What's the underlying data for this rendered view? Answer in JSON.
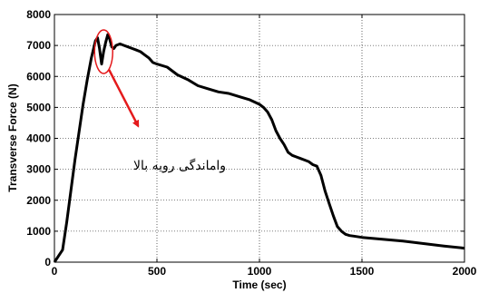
{
  "chart_data": {
    "type": "line",
    "title": "",
    "xlabel": "Time (sec)",
    "ylabel": "Transverse Force (N)",
    "xlim": [
      0,
      2000
    ],
    "ylim": [
      0,
      8000
    ],
    "x_ticks": [
      0,
      500,
      1000,
      1500,
      2000
    ],
    "y_ticks": [
      0,
      1000,
      2000,
      3000,
      4000,
      5000,
      6000,
      7000,
      8000
    ],
    "x_tick_labels": [
      "0",
      "500",
      "1000",
      "1500",
      "2000"
    ],
    "y_tick_labels": [
      "0",
      "1000",
      "2000",
      "3000",
      "4000",
      "5000",
      "6000",
      "7000",
      "8000"
    ],
    "grid": true,
    "series": [
      {
        "color": "#000000",
        "x": [
          0,
          20,
          40,
          60,
          80,
          100,
          120,
          140,
          160,
          180,
          200,
          210,
          220,
          230,
          240,
          250,
          260,
          270,
          280,
          290,
          300,
          320,
          340,
          360,
          380,
          400,
          420,
          440,
          460,
          480,
          500,
          550,
          600,
          650,
          700,
          750,
          800,
          850,
          900,
          950,
          1000,
          1020,
          1040,
          1060,
          1080,
          1100,
          1120,
          1140,
          1160,
          1180,
          1200,
          1220,
          1240,
          1260,
          1280,
          1300,
          1320,
          1340,
          1360,
          1380,
          1400,
          1420,
          1440,
          1460,
          1500,
          1600,
          1700,
          1800,
          1900,
          2000
        ],
        "y": [
          0,
          200,
          400,
          1300,
          2300,
          3300,
          4200,
          5100,
          5900,
          6600,
          7150,
          7250,
          6900,
          6400,
          6800,
          7100,
          7350,
          7200,
          6950,
          6900,
          7000,
          7050,
          7000,
          6950,
          6900,
          6850,
          6800,
          6700,
          6600,
          6450,
          6400,
          6300,
          6050,
          5900,
          5700,
          5600,
          5500,
          5450,
          5350,
          5250,
          5100,
          5000,
          4850,
          4600,
          4250,
          4000,
          3800,
          3550,
          3450,
          3400,
          3350,
          3300,
          3250,
          3150,
          3100,
          2800,
          2300,
          1900,
          1500,
          1150,
          1000,
          900,
          860,
          840,
          800,
          740,
          680,
          600,
          520,
          450
        ]
      }
    ],
    "annotations": [
      {
        "text": "واماندگی رویه بالا",
        "shape": "ellipse",
        "color": "#e41a1c",
        "x": 240,
        "y": 6800
      }
    ]
  }
}
